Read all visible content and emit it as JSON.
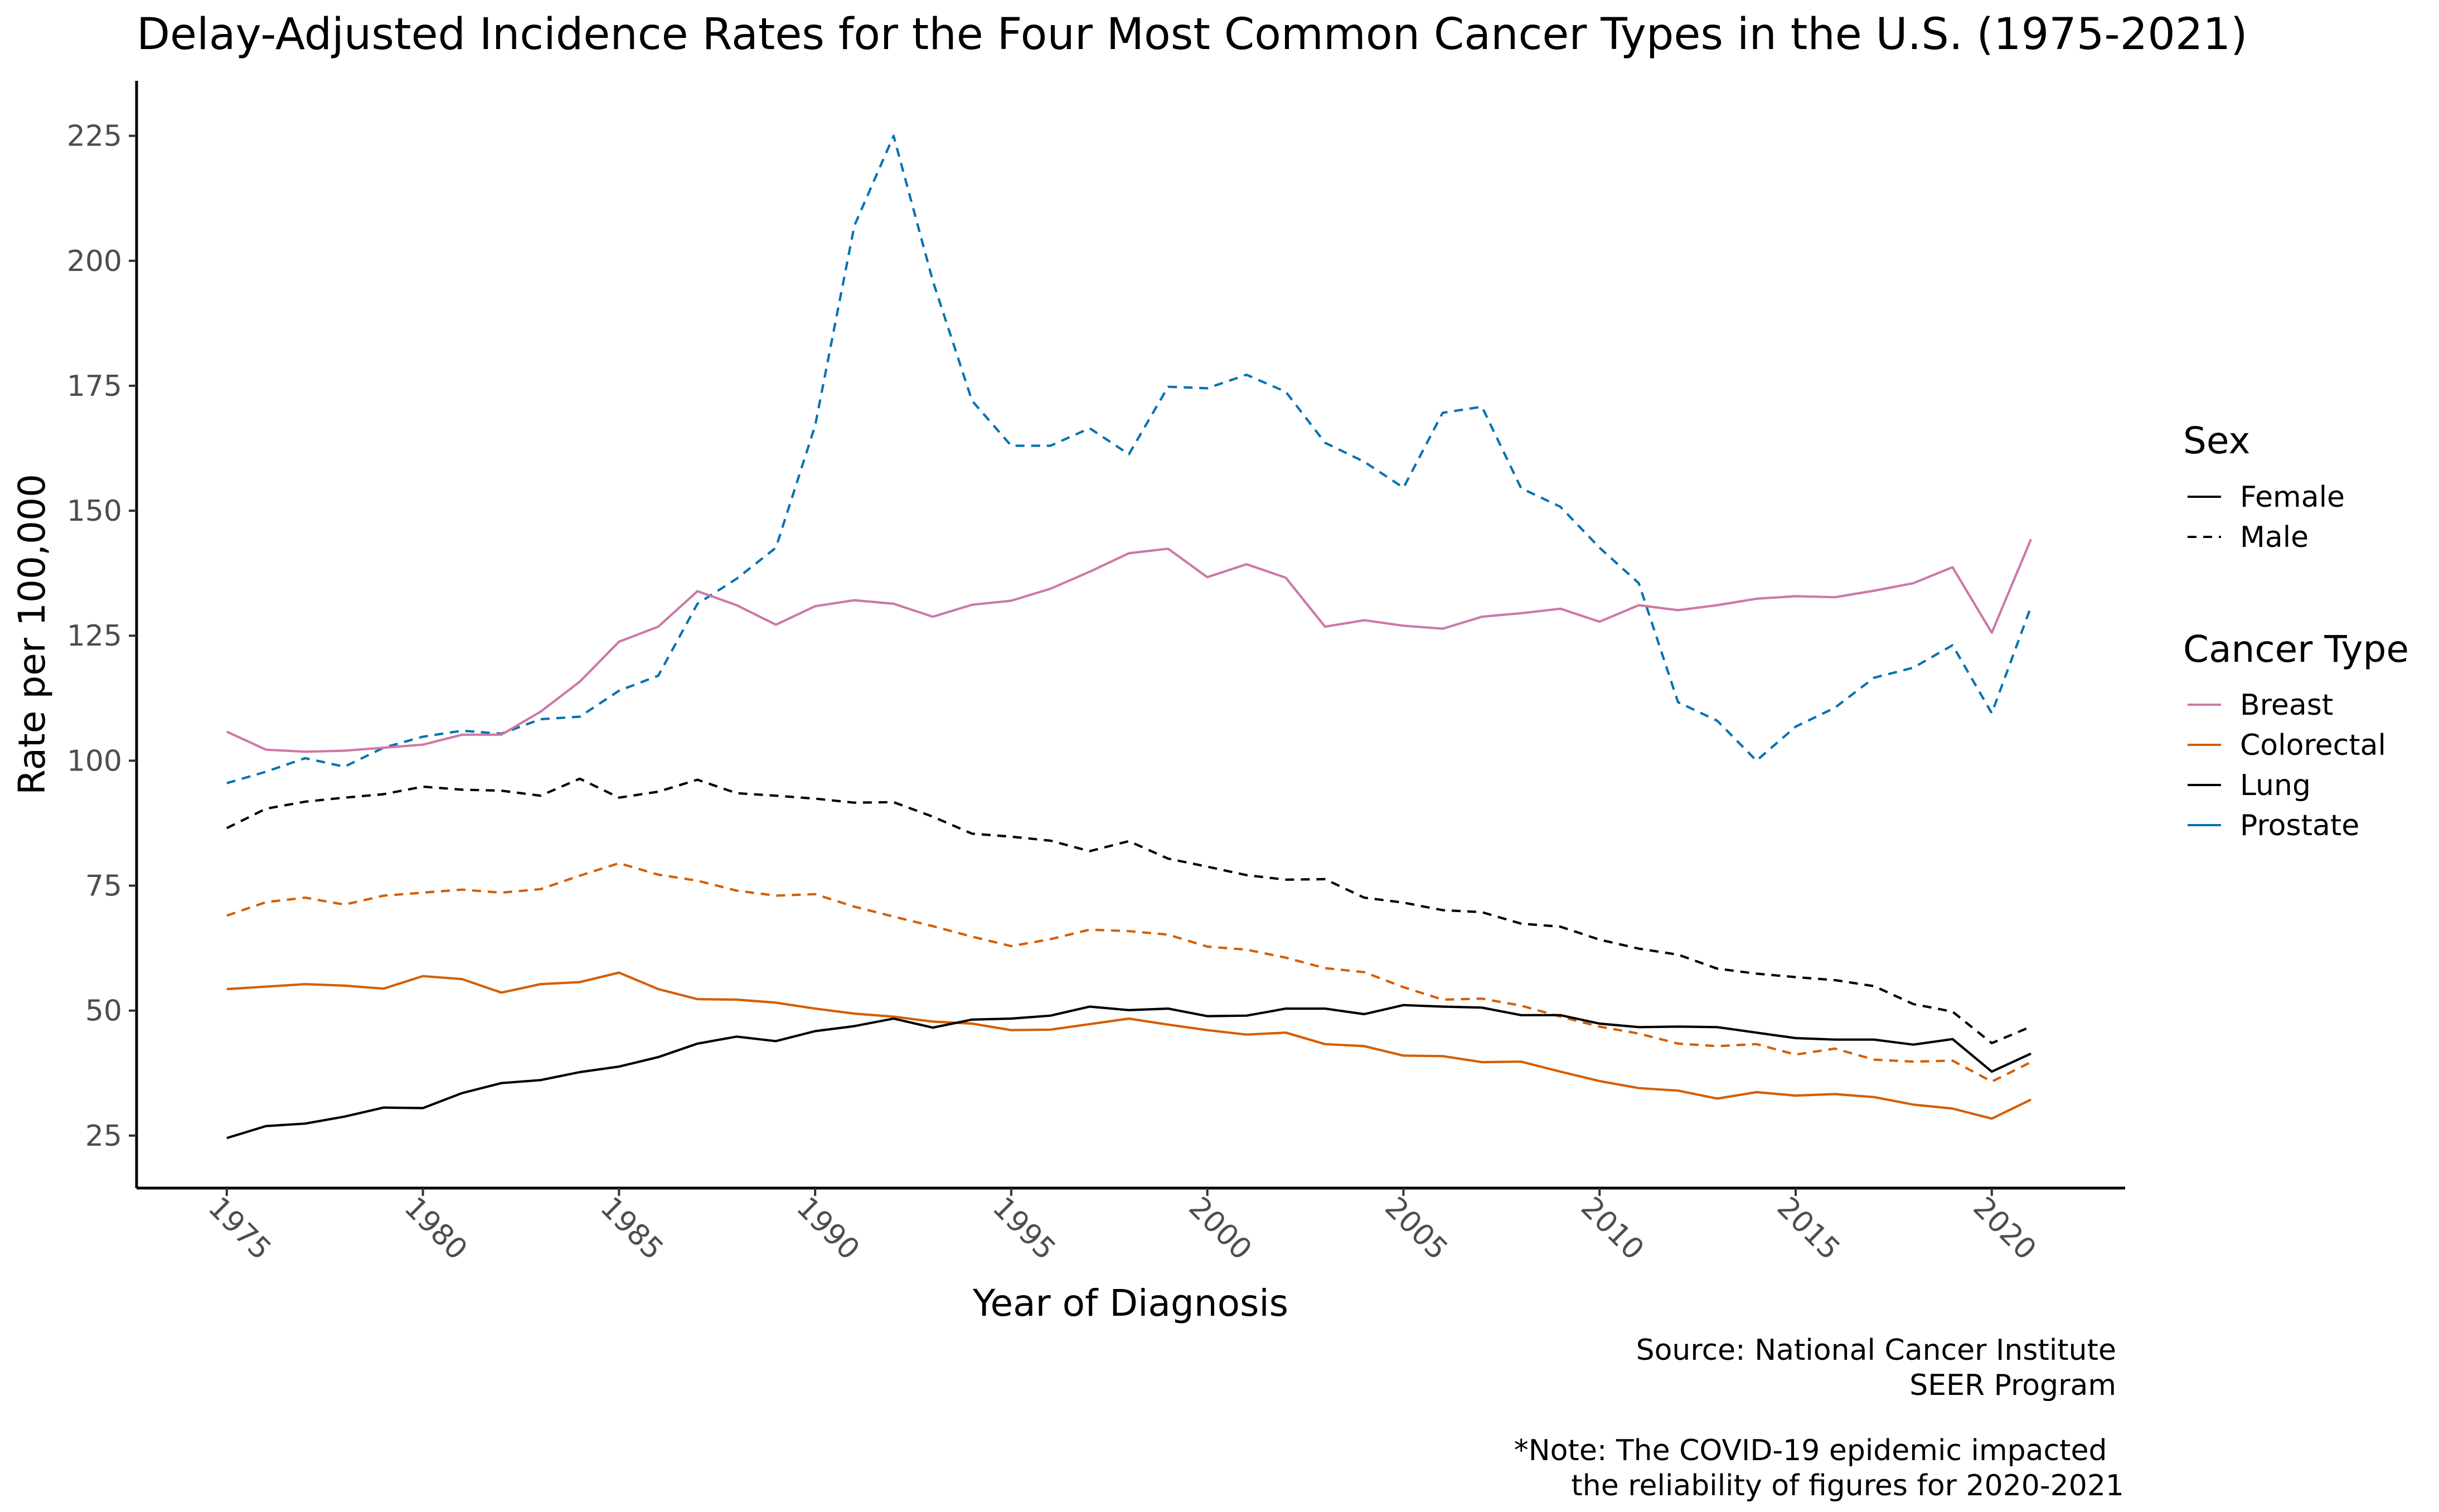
{
  "chart_data": {
    "type": "line",
    "title": "Delay-Adjusted Incidence Rates for the Four Most Common Cancer Types in the U.S. (1975-2021)",
    "xlabel": "Year of Diagnosis",
    "ylabel": "Rate per 100,000",
    "xlim": [
      1972.7,
      2023.4
    ],
    "ylim": [
      14.5,
      236
    ],
    "x_ticks": [
      "1975",
      "1980",
      "1985",
      "1990",
      "1995",
      "2000",
      "2005",
      "2010",
      "2015",
      "2020"
    ],
    "y_ticks": [
      "25",
      "50",
      "75",
      "100",
      "125",
      "150",
      "175",
      "200",
      "225"
    ],
    "grid": false,
    "legend_placement": "right",
    "legends": [
      {
        "title": "Sex",
        "items": [
          {
            "label": "Female",
            "linestyle": "solid"
          },
          {
            "label": "Male",
            "linestyle": "dashed"
          }
        ]
      },
      {
        "title": "Cancer Type",
        "items": [
          {
            "label": "Breast",
            "color": "#CC79A7"
          },
          {
            "label": "Colorectal",
            "color": "#D55E00"
          },
          {
            "label": "Lung",
            "color": "#000000"
          },
          {
            "label": "Prostate",
            "color": "#0072B2"
          }
        ]
      }
    ],
    "caption": [
      "Source: National Cancer Institute",
      "SEER Program",
      "*Note: The COVID-19 epidemic impacted ",
      "the reliability of figures for 2020-2021"
    ],
    "x": [
      1975,
      1976,
      1977,
      1978,
      1979,
      1980,
      1981,
      1982,
      1983,
      1984,
      1985,
      1986,
      1987,
      1988,
      1989,
      1990,
      1991,
      1992,
      1993,
      1994,
      1995,
      1996,
      1997,
      1998,
      1999,
      2000,
      2001,
      2002,
      2003,
      2004,
      2005,
      2006,
      2007,
      2008,
      2009,
      2010,
      2011,
      2012,
      2013,
      2014,
      2015,
      2016,
      2017,
      2018,
      2019,
      2020,
      2021
    ],
    "series": [
      {
        "cancer": "Prostate",
        "sex": "Male",
        "color": "#0072B2",
        "linestyle": "dashed",
        "values": [
          95.5,
          97.8,
          100.5,
          98.8,
          102.6,
          104.8,
          106.0,
          105.4,
          108.3,
          108.8,
          114.0,
          117.0,
          131.4,
          136.4,
          142.6,
          167.0,
          207.0,
          225.0,
          196.0,
          172.0,
          163.0,
          163.0,
          166.5,
          161.3,
          174.8,
          174.5,
          177.2,
          173.8,
          163.6,
          159.8,
          154.6,
          169.6,
          170.8,
          154.5,
          150.8,
          142.6,
          135.5,
          111.7,
          108.0,
          100.0,
          106.8,
          110.6,
          116.6,
          118.6,
          123.1,
          109.5,
          130.8
        ]
      },
      {
        "cancer": "Breast",
        "sex": "Female",
        "color": "#CC79A7",
        "linestyle": "solid",
        "values": [
          105.8,
          102.2,
          101.8,
          102.0,
          102.6,
          103.2,
          105.2,
          105.2,
          109.8,
          115.8,
          123.8,
          126.8,
          133.9,
          131.1,
          127.2,
          130.9,
          132.1,
          131.4,
          128.8,
          131.2,
          132.0,
          134.4,
          137.8,
          141.5,
          142.4,
          136.7,
          139.3,
          136.6,
          126.8,
          128.1,
          127.0,
          126.4,
          128.8,
          129.5,
          130.4,
          127.8,
          131.1,
          130.1,
          131.1,
          132.4,
          132.9,
          132.7,
          134.0,
          135.5,
          138.7,
          125.6,
          144.3
        ]
      },
      {
        "cancer": "Lung",
        "sex": "Male",
        "color": "#000000",
        "linestyle": "dashed",
        "values": [
          86.5,
          90.4,
          91.8,
          92.6,
          93.3,
          94.8,
          94.2,
          94.0,
          93.0,
          96.4,
          92.6,
          93.8,
          96.2,
          93.5,
          93.0,
          92.4,
          91.6,
          91.7,
          88.8,
          85.4,
          84.8,
          84.0,
          81.9,
          83.9,
          80.4,
          78.8,
          77.1,
          76.2,
          76.3,
          72.6,
          71.6,
          70.1,
          69.7,
          67.4,
          66.8,
          64.2,
          62.4,
          61.2,
          58.4,
          57.4,
          56.7,
          56.1,
          54.9,
          51.3,
          49.8,
          43.5,
          46.8
        ]
      },
      {
        "cancer": "Colorectal",
        "sex": "Male",
        "color": "#D55E00",
        "linestyle": "dashed",
        "values": [
          69.0,
          71.7,
          72.6,
          71.2,
          73.0,
          73.6,
          74.2,
          73.6,
          74.3,
          77.0,
          79.5,
          77.2,
          76.0,
          74.0,
          73.0,
          73.3,
          70.8,
          68.8,
          66.9,
          64.8,
          62.9,
          64.3,
          66.2,
          65.9,
          65.2,
          62.8,
          62.2,
          60.6,
          58.5,
          57.7,
          54.7,
          52.2,
          52.4,
          51.0,
          48.8,
          46.8,
          45.4,
          43.4,
          42.9,
          43.3,
          41.2,
          42.4,
          40.2,
          39.8,
          40.0,
          35.8,
          39.7
        ]
      },
      {
        "cancer": "Colorectal",
        "sex": "Female",
        "color": "#D55E00",
        "linestyle": "solid",
        "values": [
          54.3,
          54.8,
          55.3,
          55.0,
          54.4,
          56.9,
          56.3,
          53.6,
          55.3,
          55.7,
          57.6,
          54.3,
          52.3,
          52.2,
          51.6,
          50.4,
          49.4,
          48.8,
          47.8,
          47.4,
          46.1,
          46.2,
          47.3,
          48.4,
          47.2,
          46.1,
          45.2,
          45.6,
          43.3,
          42.9,
          41.0,
          40.9,
          39.7,
          39.8,
          37.8,
          35.9,
          34.5,
          34.0,
          32.4,
          33.7,
          33.0,
          33.3,
          32.7,
          31.2,
          30.4,
          28.4,
          32.2
        ]
      },
      {
        "cancer": "Lung",
        "sex": "Female",
        "color": "#000000",
        "linestyle": "solid",
        "values": [
          24.5,
          26.9,
          27.4,
          28.8,
          30.6,
          30.5,
          33.5,
          35.5,
          36.1,
          37.7,
          38.8,
          40.7,
          43.4,
          44.8,
          43.9,
          45.9,
          46.9,
          48.4,
          46.6,
          48.2,
          48.4,
          49.0,
          50.8,
          50.1,
          50.4,
          48.9,
          49.0,
          50.4,
          50.4,
          49.3,
          51.1,
          50.8,
          50.6,
          49.1,
          49.1,
          47.4,
          46.7,
          46.8,
          46.7,
          45.6,
          44.5,
          44.2,
          44.2,
          43.2,
          44.3,
          37.8,
          41.4
        ]
      }
    ]
  }
}
